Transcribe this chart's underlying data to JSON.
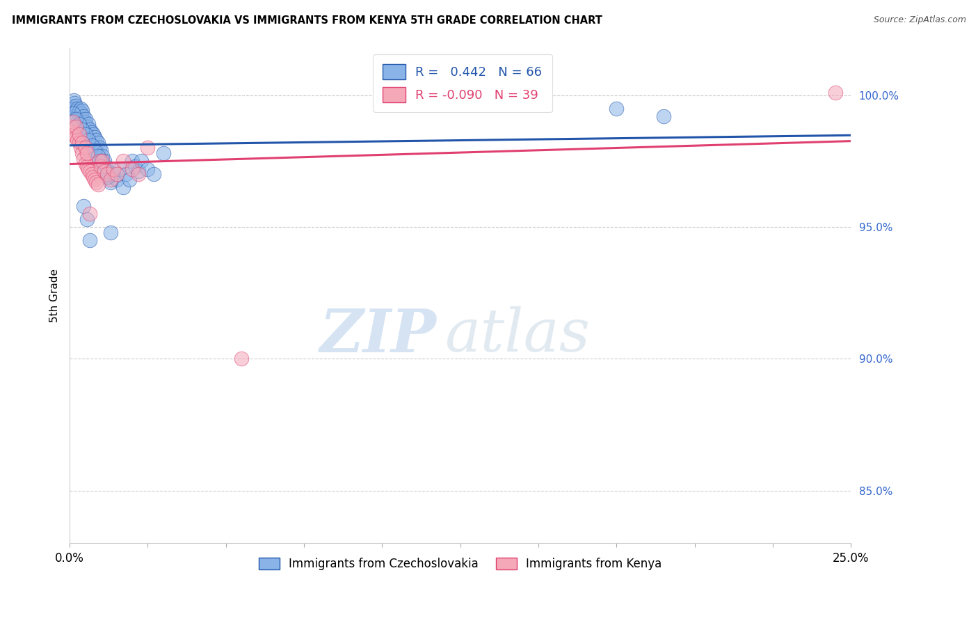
{
  "title": "IMMIGRANTS FROM CZECHOSLOVAKIA VS IMMIGRANTS FROM KENYA 5TH GRADE CORRELATION CHART",
  "source": "Source: ZipAtlas.com",
  "ylabel": "5th Grade",
  "y_ticks": [
    85.0,
    90.0,
    95.0,
    100.0
  ],
  "y_tick_labels": [
    "85.0%",
    "90.0%",
    "95.0%",
    "100.0%"
  ],
  "xlim": [
    0.0,
    25.0
  ],
  "ylim": [
    83.0,
    101.8
  ],
  "blue_R": 0.442,
  "blue_N": 66,
  "pink_R": -0.09,
  "pink_N": 39,
  "legend_label_blue": "Immigrants from Czechoslovakia",
  "legend_label_pink": "Immigrants from Kenya",
  "blue_color": "#8ab4e8",
  "pink_color": "#f4a8b8",
  "blue_line_color": "#2255aa",
  "pink_line_color": "#e04070",
  "blue_x": [
    0.05,
    0.08,
    0.1,
    0.12,
    0.15,
    0.18,
    0.2,
    0.22,
    0.25,
    0.28,
    0.3,
    0.32,
    0.35,
    0.38,
    0.4,
    0.42,
    0.45,
    0.48,
    0.5,
    0.55,
    0.6,
    0.65,
    0.7,
    0.75,
    0.8,
    0.85,
    0.9,
    0.95,
    1.0,
    1.05,
    1.1,
    1.15,
    1.2,
    1.25,
    1.3,
    1.4,
    1.5,
    1.6,
    1.7,
    1.8,
    1.9,
    2.0,
    2.1,
    2.2,
    2.3,
    2.5,
    2.7,
    3.0,
    0.1,
    0.2,
    0.3,
    0.4,
    0.5,
    0.6,
    0.7,
    0.8,
    0.9,
    1.0,
    1.1,
    1.2,
    1.3,
    17.5,
    19.0,
    0.45,
    0.55,
    0.65
  ],
  "blue_y": [
    99.2,
    99.5,
    99.6,
    99.8,
    99.7,
    99.5,
    99.6,
    99.4,
    99.5,
    99.3,
    99.4,
    99.2,
    99.5,
    99.3,
    99.4,
    99.1,
    99.2,
    99.0,
    99.1,
    98.8,
    98.9,
    98.7,
    98.6,
    98.5,
    98.4,
    98.3,
    98.2,
    98.0,
    97.9,
    97.7,
    97.5,
    97.3,
    97.1,
    96.9,
    96.7,
    97.0,
    96.8,
    97.2,
    96.5,
    97.0,
    96.8,
    97.5,
    97.3,
    97.1,
    97.5,
    97.2,
    97.0,
    97.8,
    99.3,
    99.1,
    98.9,
    98.7,
    98.5,
    98.3,
    98.1,
    97.9,
    97.7,
    97.5,
    97.2,
    96.9,
    94.8,
    99.5,
    99.2,
    95.8,
    95.3,
    94.5
  ],
  "pink_x": [
    0.05,
    0.1,
    0.15,
    0.2,
    0.25,
    0.3,
    0.35,
    0.4,
    0.45,
    0.5,
    0.55,
    0.6,
    0.65,
    0.7,
    0.75,
    0.8,
    0.85,
    0.9,
    0.95,
    1.0,
    1.05,
    1.1,
    1.2,
    1.3,
    1.4,
    1.5,
    1.7,
    2.0,
    2.2,
    2.5,
    0.1,
    0.2,
    0.3,
    0.4,
    0.5,
    0.55,
    0.65,
    5.5,
    24.5
  ],
  "pink_y": [
    98.8,
    98.6,
    98.5,
    98.4,
    98.3,
    98.2,
    98.0,
    97.8,
    97.6,
    97.4,
    97.3,
    97.2,
    97.1,
    97.0,
    96.9,
    96.8,
    96.7,
    96.6,
    97.5,
    97.3,
    97.5,
    97.1,
    97.0,
    96.8,
    97.2,
    97.0,
    97.5,
    97.2,
    97.0,
    98.0,
    99.0,
    98.8,
    98.5,
    98.2,
    98.0,
    97.8,
    95.5,
    90.0,
    100.1
  ],
  "watermark_zip": "ZIP",
  "watermark_atlas": "atlas"
}
